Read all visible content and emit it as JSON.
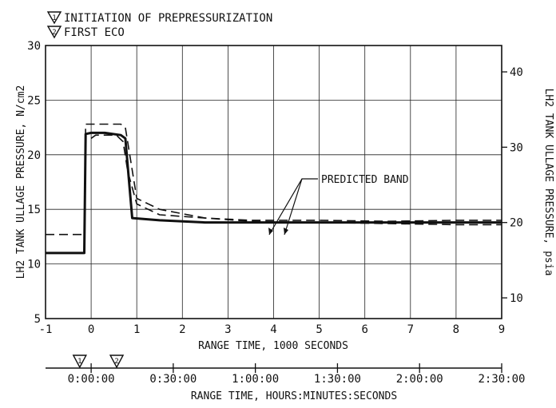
{
  "legend": [
    {
      "marker": "1",
      "text": "INITIATION OF PREPRESSURIZATION"
    },
    {
      "marker": "2",
      "text": "FIRST ECO"
    }
  ],
  "annotation": "PREDICTED BAND",
  "chart_data": {
    "type": "line",
    "xlabel": "RANGE TIME, 1000 SECONDS",
    "ylabel": "LH2 TANK ULLAGE PRESSURE, N/cm2",
    "ylabel_right": "LH2 TANK ULLAGE PRESSURE, psia",
    "xlim": [
      -1,
      9
    ],
    "ylim": [
      5,
      30
    ],
    "ylim_right_psia": [
      7.25,
      43.5
    ],
    "x_ticks": [
      -1,
      0,
      1,
      2,
      3,
      4,
      5,
      6,
      7,
      8,
      9
    ],
    "y_ticks": [
      5,
      10,
      15,
      20,
      25,
      30
    ],
    "y_ticks_right": [
      10,
      20,
      30,
      40
    ],
    "grid": true,
    "secondary_axis": {
      "label": "RANGE TIME, HOURS:MINUTES:SECONDS",
      "ticks": [
        {
          "label": "0:00:00",
          "seconds": 0
        },
        {
          "label": "0:30:00",
          "seconds": 1800
        },
        {
          "label": "1:00:00",
          "seconds": 3600
        },
        {
          "label": "1:30:00",
          "seconds": 5400
        },
        {
          "label": "2:00:00",
          "seconds": 7200
        },
        {
          "label": "2:30:00",
          "seconds": 9000
        }
      ],
      "markers": [
        {
          "marker": "1",
          "seconds": -250
        },
        {
          "marker": "2",
          "seconds": 560
        }
      ]
    },
    "series": [
      {
        "name": "",
        "style": "solid",
        "x": [
          -1.0,
          -0.15,
          -0.12,
          0.0,
          0.3,
          0.65,
          0.75,
          0.9,
          1.5,
          2.5,
          4.0,
          6.0,
          8.0,
          9.0
        ],
        "y": [
          11.0,
          11.0,
          21.9,
          22.0,
          22.0,
          21.8,
          21.5,
          14.2,
          14.0,
          13.8,
          13.8,
          13.8,
          13.8,
          13.8
        ]
      },
      {
        "name": "",
        "style": "dashed",
        "x": [
          -1.0,
          -0.15,
          -0.12,
          0.0,
          0.65,
          0.75,
          1.0,
          1.5,
          2.5,
          3.5,
          5.0,
          6.5,
          8.0,
          9.0
        ],
        "y": [
          12.7,
          12.7,
          22.8,
          22.8,
          22.8,
          22.5,
          16.0,
          15.0,
          14.2,
          14.0,
          14.0,
          13.9,
          14.0,
          14.0
        ]
      },
      {
        "name": "",
        "style": "dashed",
        "x": [
          0.0,
          0.1,
          0.55,
          0.7,
          0.8,
          1.0,
          1.5,
          2.5,
          3.5,
          5.0,
          6.5,
          8.0,
          9.0
        ],
        "y": [
          21.5,
          21.8,
          21.8,
          21.2,
          18.5,
          15.5,
          14.5,
          14.2,
          13.9,
          13.8,
          13.7,
          13.6,
          13.6
        ]
      }
    ]
  }
}
